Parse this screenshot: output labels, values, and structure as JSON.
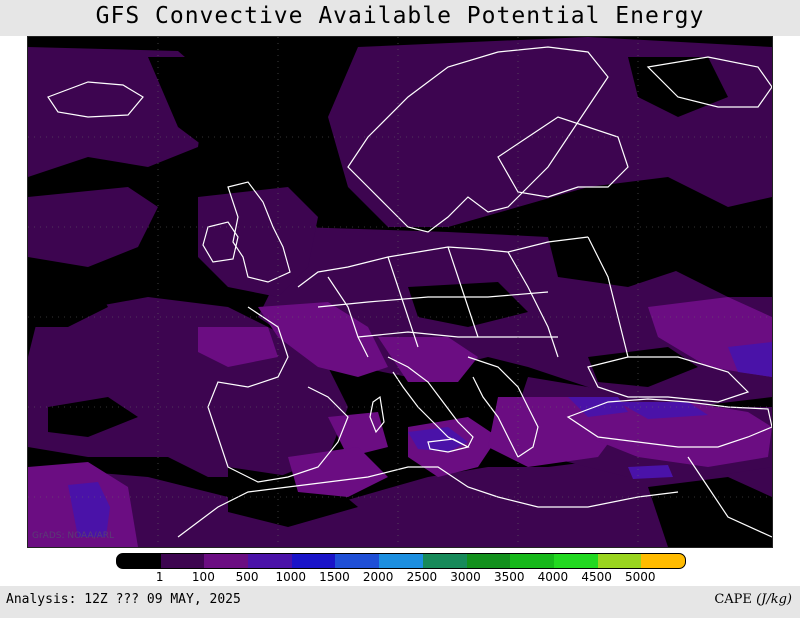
{
  "title": "GFS Convective Available Potential Energy",
  "watermark": "GrADS: NOAA/ARL",
  "colorbar": {
    "colors": [
      "#000000",
      "#3d0550",
      "#6b0d82",
      "#4a12a8",
      "#1a14c8",
      "#1f4fd6",
      "#1c8fe0",
      "#178a5a",
      "#12901c",
      "#16b81a",
      "#22d820",
      "#9ad41e",
      "#ffbb00"
    ],
    "labels": [
      "1",
      "100",
      "500",
      "1000",
      "1500",
      "2000",
      "2500",
      "3000",
      "3500",
      "4000",
      "4500",
      "5000"
    ]
  },
  "footer": {
    "analysis": "Analysis: 12Z ??? 09 MAY, 2025",
    "units_prefix": "CAPE",
    "units_value": "(J/kg)"
  },
  "map": {
    "background_color": "#000000",
    "low_cape_color": "#3d0550",
    "mid_cape_color": "#6b0d82",
    "high_cape_color": "#4a12a8",
    "peak_cape_color": "#1a14c8",
    "coastline_color": "#ffffff"
  }
}
